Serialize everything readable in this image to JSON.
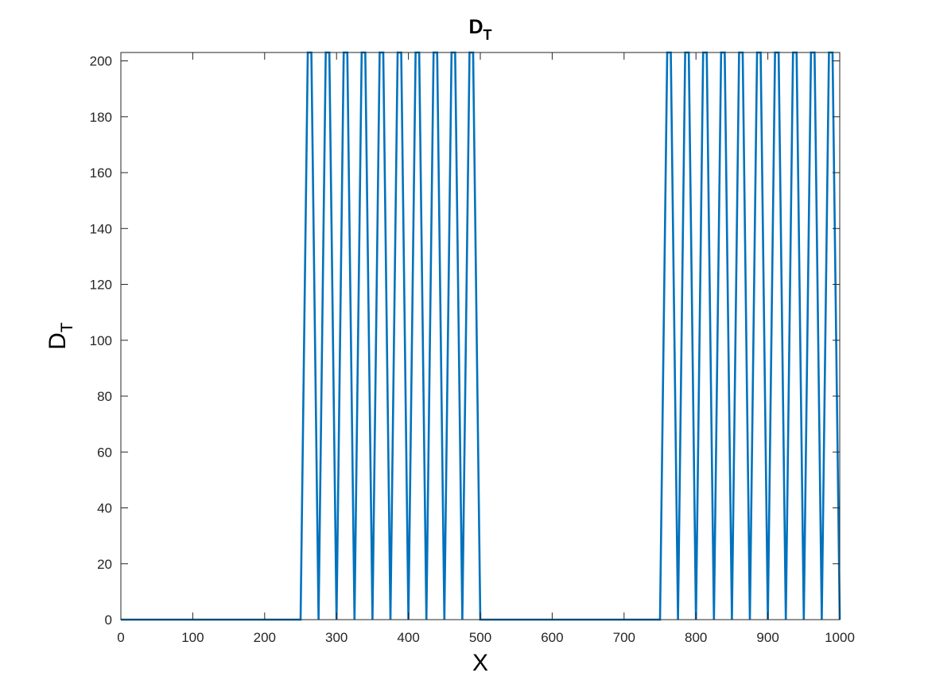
{
  "chart_data": {
    "type": "line",
    "title": {
      "main": "D",
      "sub": "T"
    },
    "xlabel": "X",
    "ylabel": {
      "main": "D",
      "sub": "T"
    },
    "xlim": [
      0,
      1000
    ],
    "ylim": [
      0,
      203
    ],
    "xticks": [
      0,
      100,
      200,
      300,
      400,
      500,
      600,
      700,
      800,
      900,
      1000
    ],
    "yticks": [
      0,
      20,
      40,
      60,
      80,
      100,
      120,
      140,
      160,
      180,
      200
    ],
    "xtick_labels": [
      "0",
      "100",
      "200",
      "300",
      "400",
      "500",
      "600",
      "700",
      "800",
      "900",
      "1000"
    ],
    "ytick_labels": [
      "0",
      "20",
      "40",
      "60",
      "80",
      "100",
      "120",
      "140",
      "160",
      "180",
      "200"
    ],
    "grid": false,
    "colors": {
      "line": "#0072BD",
      "axis": "#262626"
    },
    "series": [
      {
        "x": [
          0,
          250,
          260,
          265,
          275,
          285,
          290,
          300,
          310,
          315,
          325,
          335,
          340,
          350,
          360,
          365,
          375,
          385,
          390,
          400,
          410,
          415,
          425,
          435,
          440,
          450,
          460,
          465,
          475,
          485,
          490,
          500,
          750,
          760,
          765,
          775,
          785,
          790,
          800,
          810,
          815,
          825,
          835,
          840,
          850,
          860,
          865,
          875,
          885,
          890,
          900,
          910,
          915,
          925,
          935,
          940,
          950,
          960,
          965,
          975,
          985,
          990,
          1000
        ],
        "y": [
          0,
          0,
          203,
          203,
          0,
          203,
          203,
          0,
          203,
          203,
          0,
          203,
          203,
          0,
          203,
          203,
          0,
          203,
          203,
          0,
          203,
          203,
          0,
          203,
          203,
          0,
          203,
          203,
          0,
          203,
          203,
          0,
          0,
          203,
          203,
          0,
          203,
          203,
          0,
          203,
          203,
          0,
          203,
          203,
          0,
          203,
          203,
          0,
          203,
          203,
          0,
          203,
          203,
          0,
          203,
          203,
          0,
          203,
          203,
          0,
          203,
          203,
          0
        ]
      }
    ]
  }
}
